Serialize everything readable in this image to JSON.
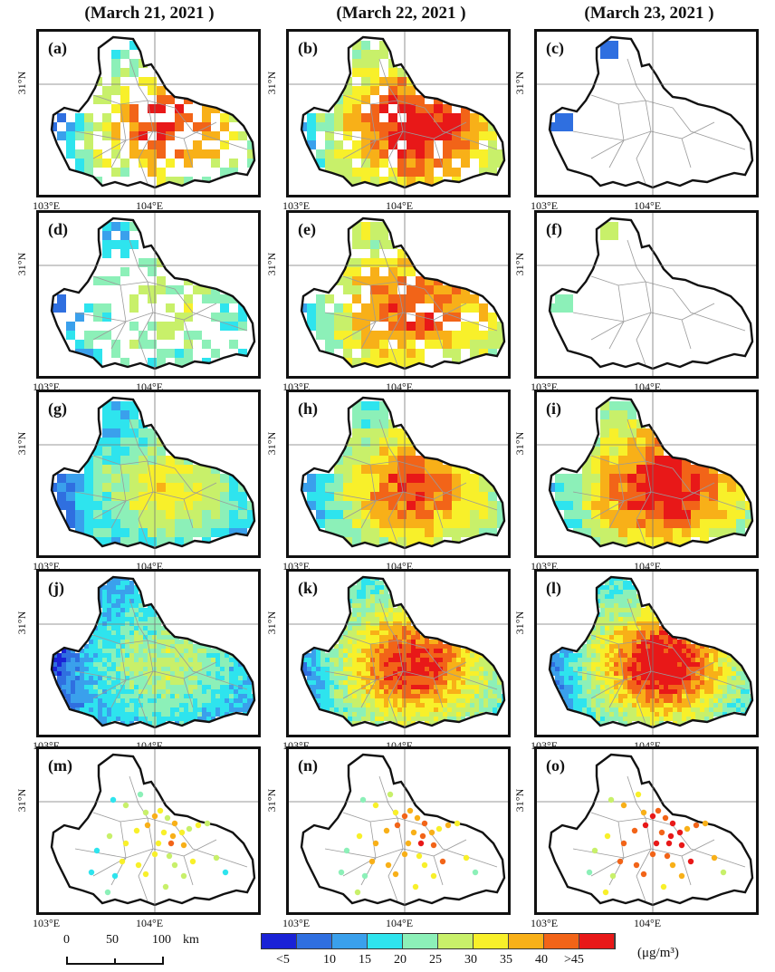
{
  "column_titles": [
    "(March 21, 2021 )",
    "(March 22, 2021 )",
    "(March 23, 2021 )"
  ],
  "panel_labels": [
    "(a)",
    "(b)",
    "(c)",
    "(d)",
    "(e)",
    "(f)",
    "(g)",
    "(h)",
    "(i)",
    "(j)",
    "(k)",
    "(l)",
    "(m)",
    "(n)",
    "(o)"
  ],
  "axis": {
    "lat_label": "31°N",
    "lon_left": "103°E",
    "lon_right": "104°E"
  },
  "scale_bar": {
    "labels": [
      "0",
      "50",
      "100"
    ],
    "unit": "km"
  },
  "colorbar": {
    "labels": [
      "<5",
      "10",
      "15",
      "20",
      "25",
      "30",
      "35",
      "40",
      ">45"
    ],
    "unit": "(μg/m³)",
    "colors": [
      "#1a22d6",
      "#2f6fe0",
      "#3aa0ec",
      "#2ee4ee",
      "#8cf0b8",
      "#c8f06a",
      "#f8f02a",
      "#f8b018",
      "#f26418",
      "#e81818"
    ]
  },
  "map_layers": {
    "grid_lat": "31°N",
    "grid_lon": "104°E"
  }
}
